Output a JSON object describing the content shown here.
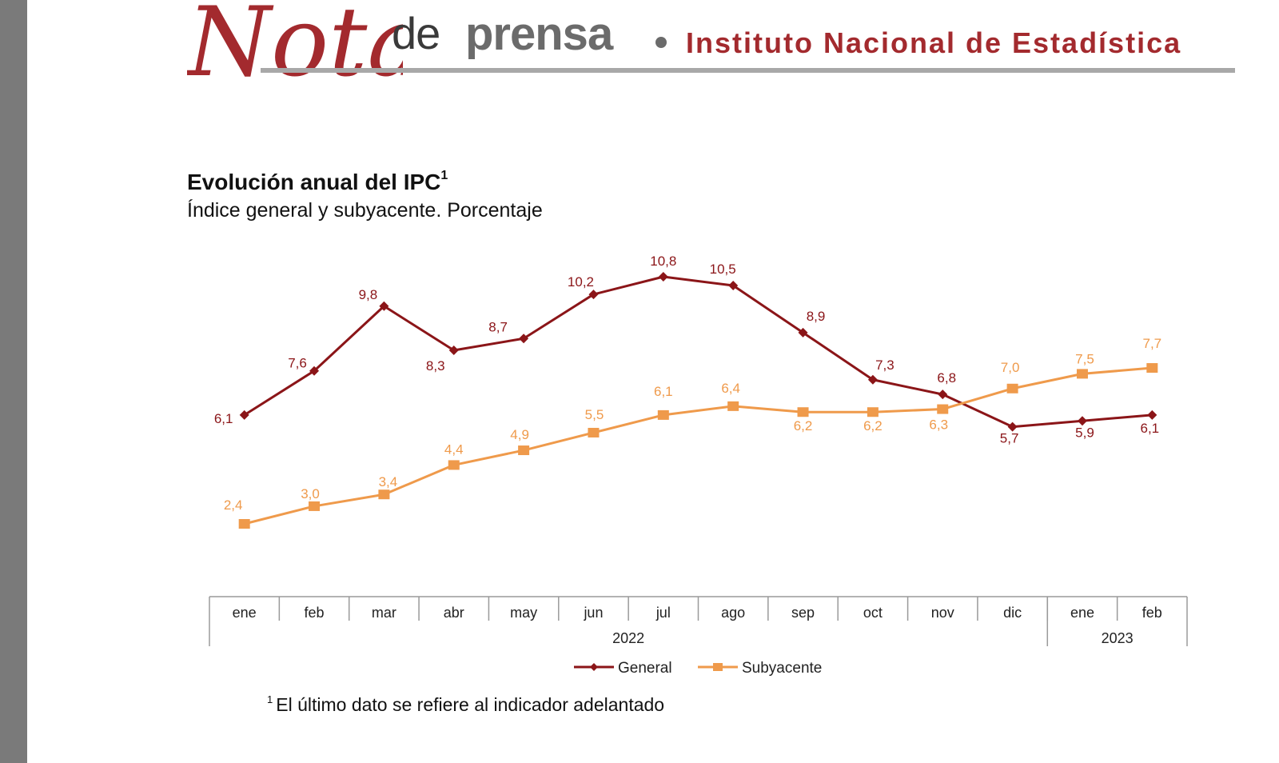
{
  "header": {
    "logo_text": "Notas",
    "de": "de",
    "prensa": "prensa",
    "institution": "Instituto Nacional de Estadística"
  },
  "colors": {
    "brand_red": "#a32a2e",
    "general": "#8b1518",
    "subyacente": "#ef9a4b"
  },
  "chart_data": {
    "type": "line",
    "title": "Evolución anual del IPC",
    "title_sup": "1",
    "subtitle": "Índice general y subyacente. Porcentaje",
    "categories": [
      "ene",
      "feb",
      "mar",
      "abr",
      "may",
      "jun",
      "jul",
      "ago",
      "sep",
      "oct",
      "nov",
      "dic",
      "ene",
      "feb"
    ],
    "years": [
      {
        "label": "2022",
        "months": 12
      },
      {
        "label": "2023",
        "months": 2
      }
    ],
    "series": [
      {
        "name": "General",
        "marker": "diamond",
        "color": "#8b1518",
        "values": [
          6.1,
          7.6,
          9.8,
          8.3,
          8.7,
          10.2,
          10.8,
          10.5,
          8.9,
          7.3,
          6.8,
          5.7,
          5.9,
          6.1
        ],
        "labels": [
          "6,1",
          "7,6",
          "9,8",
          "8,3",
          "8,7",
          "10,2",
          "10,8",
          "10,5",
          "8,9",
          "7,3",
          "6,8",
          "5,7",
          "5,9",
          "6,1"
        ]
      },
      {
        "name": "Subyacente",
        "marker": "square",
        "color": "#ef9a4b",
        "values": [
          2.4,
          3.0,
          3.4,
          4.4,
          4.9,
          5.5,
          6.1,
          6.4,
          6.2,
          6.2,
          6.3,
          7.0,
          7.5,
          7.7
        ],
        "labels": [
          "2,4",
          "3,0",
          "3,4",
          "4,4",
          "4,9",
          "5,5",
          "6,1",
          "6,4",
          "6,2",
          "6,2",
          "6,3",
          "7,0",
          "7,5",
          "7,7"
        ]
      }
    ],
    "legend": "bottom-center",
    "grid": false
  },
  "footnote": {
    "sup": "1",
    "text": "El último dato se refiere al indicador adelantado"
  }
}
